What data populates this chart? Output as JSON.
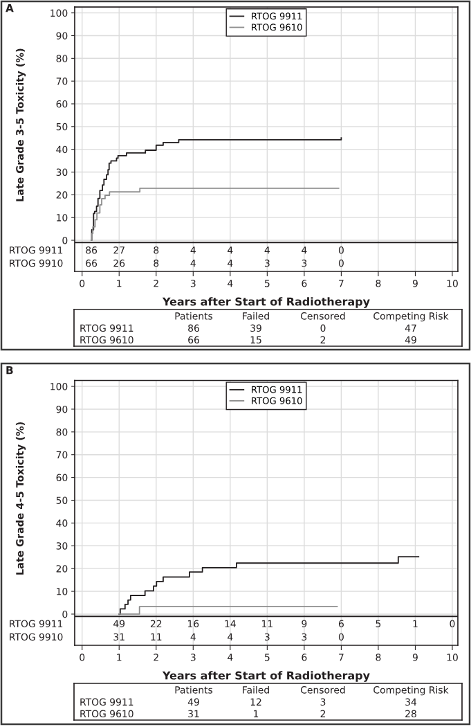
{
  "chart_data": [
    {
      "type": "step",
      "title": "A",
      "ylabel": "Late Grade 3-5 Toxicity (%)",
      "xlabel": "Years after Start of Radiotherapy",
      "xlim": [
        -0.2,
        10.15
      ],
      "xticks": [
        0,
        1,
        2,
        3,
        4,
        5,
        6,
        7,
        8,
        9,
        10
      ],
      "ylim": [
        -13.7,
        102.6
      ],
      "yticks": [
        0,
        10,
        20,
        30,
        40,
        50,
        60,
        70,
        80,
        90,
        100
      ],
      "grid": true,
      "legend": "top",
      "ref_lines": [
        {
          "axis": "y",
          "value": -1,
          "color": "#231f20"
        }
      ],
      "series": [
        {
          "name": "RTOG 9911",
          "color": "#231f20",
          "x": [
            0.25,
            0.26,
            0.31,
            0.34,
            0.39,
            0.43,
            0.48,
            0.55,
            0.59,
            0.66,
            0.7,
            0.73,
            0.78,
            0.93,
            0.97,
            1.2,
            1.71,
            2.0,
            2.19,
            2.61,
            7.0
          ],
          "values": [
            0,
            4.6,
            11.8,
            12.7,
            15,
            18.4,
            21.9,
            24.3,
            26.8,
            28.8,
            31,
            33.9,
            34.9,
            36.1,
            37.2,
            38.4,
            39.6,
            41.8,
            43,
            44.2,
            45
          ]
        },
        {
          "name": "RTOG 9610",
          "color": "#8c8c8c",
          "x": [
            0.25,
            0.26,
            0.29,
            0.35,
            0.4,
            0.48,
            0.53,
            0.62,
            0.74,
            1.56,
            6.93
          ],
          "values": [
            0,
            3,
            5.9,
            9,
            12,
            15.6,
            18.3,
            19.8,
            21.3,
            22.9,
            22.9
          ]
        }
      ],
      "annotations": [
        "RTOG 9911",
        "86",
        "27",
        "8",
        "4",
        "4",
        "4",
        "4",
        "0",
        "RTOG 9910",
        "66",
        "26",
        "8",
        "4",
        "4",
        "3",
        "3",
        "0"
      ]
    },
    {
      "type": "other",
      "annotations": [
        "Patients",
        "Failed",
        "Censored",
        "Competing Risk",
        "RTOG 9911",
        "86",
        "39",
        "0",
        "47",
        "RTOG 9610",
        "66",
        "15",
        "2",
        "49"
      ]
    },
    {
      "type": "step",
      "title": "B",
      "ylabel": "Late Grade 4-5 Toxicity (%)",
      "xlabel": "Years after Start of Radiotherapy",
      "xlim": [
        -0.2,
        10.15
      ],
      "xticks": [
        0,
        1,
        2,
        3,
        4,
        5,
        6,
        7,
        8,
        9,
        10
      ],
      "ylim": [
        -13.7,
        102.6
      ],
      "yticks": [
        0,
        10,
        20,
        30,
        40,
        50,
        60,
        70,
        80,
        90,
        100
      ],
      "grid": true,
      "legend": "top",
      "ref_lines": [
        {
          "axis": "y",
          "value": -1,
          "color": "#231f20"
        }
      ],
      "series": [
        {
          "name": "RTOG 9911",
          "color": "#231f20",
          "x": [
            1.0,
            1.03,
            1.16,
            1.24,
            1.31,
            1.7,
            1.93,
            2.01,
            2.19,
            2.9,
            3.25,
            4.17,
            8.54,
            9.09
          ],
          "values": [
            0,
            2.3,
            4.3,
            6.2,
            8.2,
            10.2,
            12.3,
            14.3,
            16.3,
            18.5,
            20.4,
            22.4,
            25.2,
            25.2
          ]
        },
        {
          "name": "RTOG 9610",
          "color": "#8c8c8c",
          "x": [
            1.0,
            1.55,
            6.89
          ],
          "values": [
            0,
            3.3,
            3.3
          ]
        }
      ],
      "annotations": [
        "RTOG 9911",
        "49",
        "22",
        "16",
        "14",
        "11",
        "9",
        "6",
        "5",
        "1",
        "0",
        "RTOG 9910",
        "31",
        "11",
        "4",
        "4",
        "3",
        "3",
        "0"
      ]
    },
    {
      "type": "other",
      "annotations": [
        "Patients",
        "Failed",
        "Censored",
        "Competing Risk",
        "RTOG 9911",
        "49",
        "12",
        "3",
        "34",
        "RTOG 9610",
        "31",
        "1",
        "2",
        "28"
      ]
    }
  ]
}
